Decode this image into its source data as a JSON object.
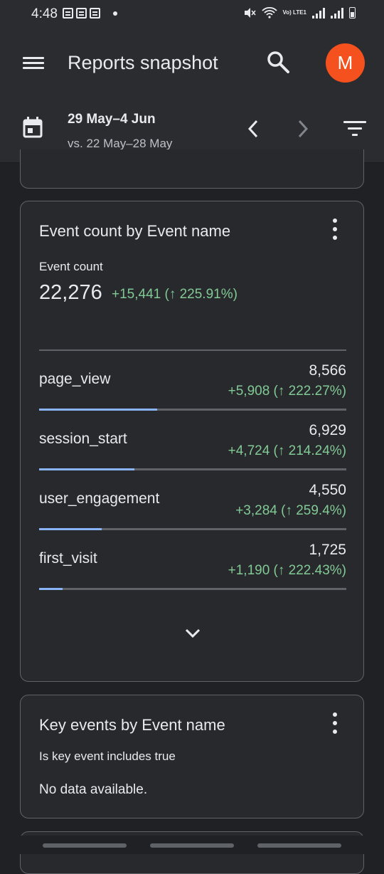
{
  "status_bar": {
    "time": "4:48",
    "network_label": "Vo) LTE1"
  },
  "app_bar": {
    "title": "Reports snapshot",
    "avatar_letter": "M",
    "avatar_color": "#f4511e"
  },
  "date_bar": {
    "range": "29 May–4 Jun",
    "compare": "vs. 22 May–28 May"
  },
  "event_card": {
    "title": "Event count by Event name",
    "metric_label": "Event count",
    "metric_value": "22,276",
    "metric_delta": "+15,441 (↑ 225.91%)",
    "rows": [
      {
        "name": "page_view",
        "value": "8,566",
        "delta": "+5,908 (↑ 222.27%)",
        "share": 0.385
      },
      {
        "name": "session_start",
        "value": "6,929",
        "delta": "+4,724 (↑ 214.24%)",
        "share": 0.311
      },
      {
        "name": "user_engagement",
        "value": "4,550",
        "delta": "+3,284 (↑ 259.4%)",
        "share": 0.204
      },
      {
        "name": "first_visit",
        "value": "1,725",
        "delta": "+1,190 (↑ 222.43%)",
        "share": 0.077
      }
    ]
  },
  "key_events_card": {
    "title": "Key events by Event name",
    "subtitle": "Is key event includes true",
    "empty_text": "No data available."
  },
  "colors": {
    "positive": "#81c995",
    "bar_fill": "#8ab4f8",
    "track": "#5f6368"
  }
}
